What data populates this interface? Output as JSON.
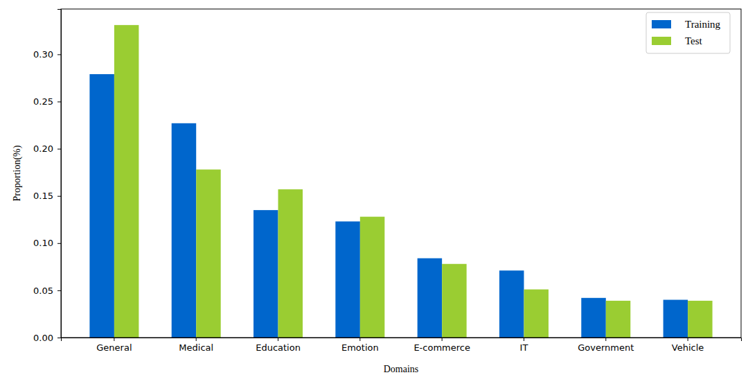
{
  "chart_data": {
    "type": "bar",
    "categories": [
      "General",
      "Medical",
      "Education",
      "Emotion",
      "E-commerce",
      "IT",
      "Government",
      "Vehicle"
    ],
    "series": [
      {
        "name": "Training",
        "color": "#0066cc",
        "values": [
          0.279,
          0.227,
          0.135,
          0.123,
          0.084,
          0.071,
          0.042,
          0.04
        ]
      },
      {
        "name": "Test",
        "color": "#9acd32",
        "values": [
          0.331,
          0.178,
          0.157,
          0.128,
          0.078,
          0.051,
          0.039,
          0.039
        ]
      }
    ],
    "x_label": "Domains",
    "y_label": "Proportion(%)",
    "ylim": [
      0,
      0.348
    ],
    "yticks": [
      {
        "value": 0,
        "label": "0.00"
      },
      {
        "value": 0.05,
        "label": "0.05"
      },
      {
        "value": 0.1,
        "label": "0.10"
      },
      {
        "value": 0.15,
        "label": "0.15"
      },
      {
        "value": 0.2,
        "label": "0.20"
      },
      {
        "value": 0.25,
        "label": "0.25"
      },
      {
        "value": 0.3,
        "label": "0.30"
      }
    ],
    "legend": "upper right",
    "grid": false
  }
}
